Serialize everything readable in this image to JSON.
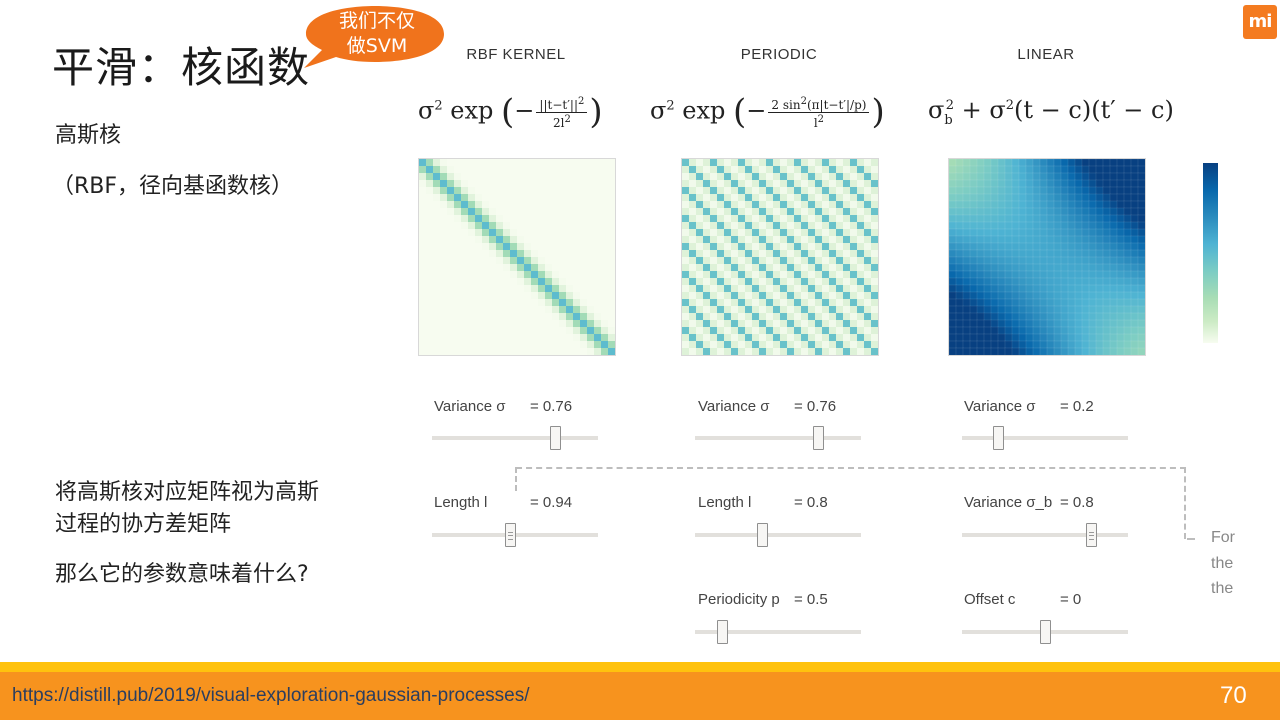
{
  "slide": {
    "title": "平滑：核函数",
    "bubble_line1": "我们不仅",
    "bubble_line2": "做SVM",
    "logo": "mi",
    "left_texts": {
      "gaussian_kernel": "高斯核",
      "rbf_note": "（RBF，径向基函数核）",
      "matrix_line1": "将高斯核对应矩阵视为高斯",
      "matrix_line2": "过程的协方差矩阵",
      "question": "那么它的参数意味着什么?"
    },
    "footer_url": "https://distill.pub/2019/visual-exploration-gaussian-processes/",
    "page_number": "70"
  },
  "kernels": [
    {
      "title": "RBF KERNEL",
      "controls": [
        {
          "label": "Variance σ",
          "value": "= 0.76",
          "fraction": 0.76
        },
        {
          "label": "Length l",
          "value": "= 0.94",
          "fraction": 0.47
        }
      ]
    },
    {
      "title": "PERIODIC",
      "controls": [
        {
          "label": "Variance σ",
          "value": "= 0.76",
          "fraction": 0.76
        },
        {
          "label": "Length l",
          "value": "= 0.8",
          "fraction": 0.4
        },
        {
          "label": "Periodicity p",
          "value": "= 0.5",
          "fraction": 0.14
        }
      ]
    },
    {
      "title": "LINEAR",
      "controls": [
        {
          "label": "Variance σ",
          "value": "= 0.2",
          "fraction": 0.2
        },
        {
          "label": "Variance σ_b",
          "value": "= 0.8",
          "fraction": 0.8
        },
        {
          "label": "Offset c",
          "value": "= 0",
          "fraction": 0.5
        }
      ]
    }
  ],
  "side_text": [
    "For",
    "the",
    "the"
  ],
  "colors": {
    "accent": "#f47b20",
    "footer_orange": "#f7931e",
    "footer_yellow": "#ffc20e",
    "heat_low": "#f7fcf0",
    "heat_high": "#084081"
  }
}
